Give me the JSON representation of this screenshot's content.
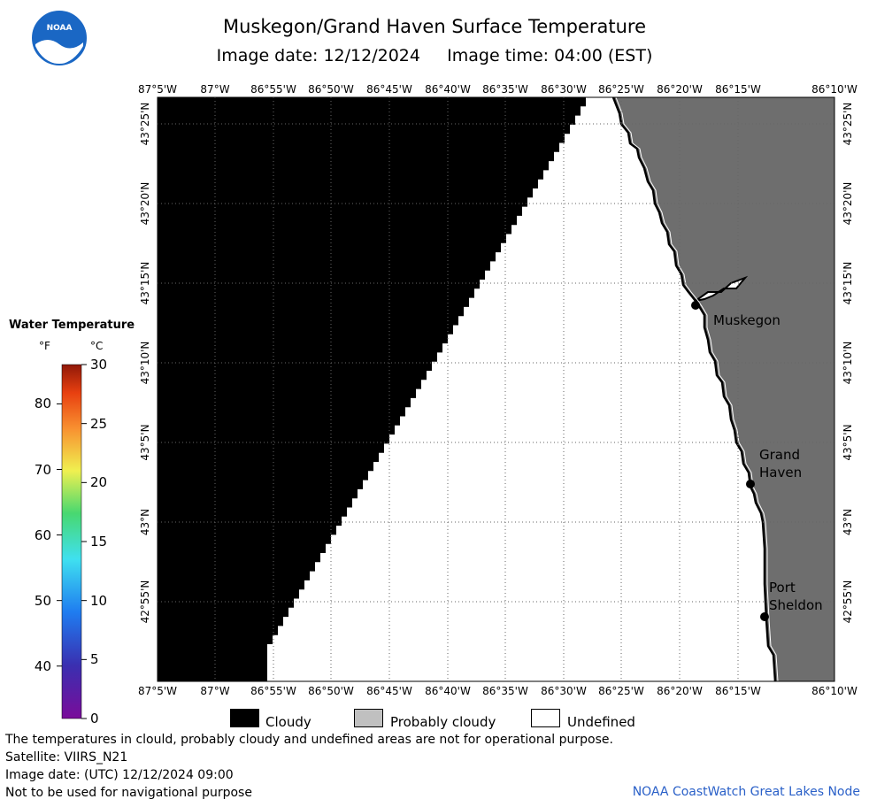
{
  "title": "Muskegon/Grand Haven Surface Temperature",
  "image_date_label": "Image date: 12/12/2024",
  "image_time_label": "Image time: 04:00 (EST)",
  "logo_text": "NOAA",
  "lon_labels": [
    "87°5'W",
    "87°W",
    "86°55'W",
    "86°50'W",
    "86°45'W",
    "86°40'W",
    "86°35'W",
    "86°30'W",
    "86°25'W",
    "86°20'W",
    "86°15'W",
    "86°10'W"
  ],
  "lat_labels": [
    "43°25'N",
    "43°20'N",
    "43°15'N",
    "43°10'N",
    "43°5'N",
    "43°N",
    "42°55'N"
  ],
  "cities": [
    {
      "name_lines": [
        "Muskegon"
      ]
    },
    {
      "name_lines": [
        "Grand",
        "Haven"
      ]
    },
    {
      "name_lines": [
        "Port",
        "Sheldon"
      ]
    }
  ],
  "colorbar": {
    "title": "Water Temperature",
    "unit_f": "°F",
    "unit_c": "°C",
    "f_ticks": [
      "80",
      "70",
      "60",
      "50",
      "40"
    ],
    "c_ticks": [
      "30",
      "25",
      "20",
      "15",
      "10",
      "5",
      "0"
    ]
  },
  "legend": [
    {
      "label": "Cloudy",
      "color": "#000000"
    },
    {
      "label": "Probably cloudy",
      "color": "#c0c0c0"
    },
    {
      "label": "Undefined",
      "color": "#ffffff"
    }
  ],
  "colors": {
    "cloudy": "#000000",
    "land": "#6e6e6e",
    "undefined": "#ffffff"
  },
  "footer": {
    "disclaimer": "The temperatures in clould, probably cloudy and undefined areas are not for operational purpose.",
    "satellite": "Satellite: VIIRS_N21",
    "utc_date": "Image date: (UTC) 12/12/2024  09:00",
    "nav_warning": "Not to be used for navigational purpose",
    "credit": "NOAA CoastWatch Great Lakes Node"
  }
}
